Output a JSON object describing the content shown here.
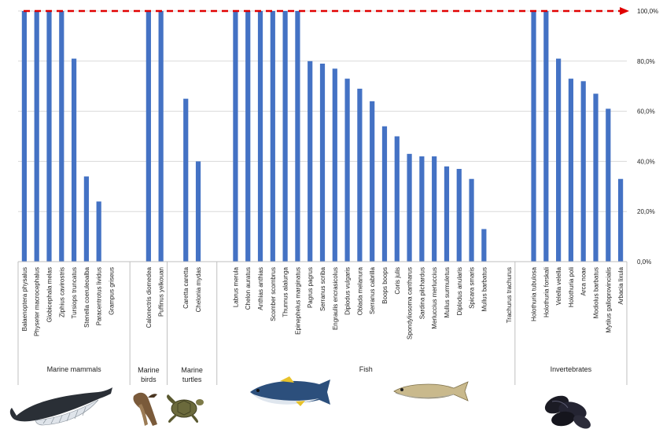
{
  "chart_data": {
    "type": "bar",
    "title": "",
    "xlabel": "",
    "ylabel": "",
    "ylim": [
      0,
      100
    ],
    "yticks": [
      "0,0%",
      "20,0%",
      "40,0%",
      "60,0%",
      "80,0%",
      "100,0%"
    ],
    "y_axis_position": "right",
    "grid": true,
    "bar_color": "#4472C4",
    "reference_line": {
      "value": 100,
      "color": "#E00000",
      "style": "dashed-arrow"
    },
    "categories": [
      "Balaenoptera physalus",
      "Physeter macrocephalus",
      "Globicephala melas",
      "Ziphius cavirostris",
      "Tursiops truncatus",
      "Stenella coeruleoalba",
      "Paracentrotus lividus",
      "Grampus griseus",
      "",
      "",
      "Calonectris diomedea",
      "Puffinus yelkouan",
      "",
      "Caretta caretta",
      "Chelonia mydas",
      "",
      "",
      "Labrus merula",
      "Chelon auratus",
      "Anthias anthias",
      "Scomber scombrus",
      "Thunnus alalunga",
      "Epinephelus marginatus",
      "Pagrus pagrus",
      "Serranus scriba",
      "Engraulis encrasicolus",
      "Diplodus vulgaris",
      "Oblada melanura",
      "Serranus cabrilla",
      "Boops boops",
      "Coris julis",
      "Spondyliosoma cantharus",
      "Sardina pilchardus",
      "Merluccius merluccius",
      "Mullus surmuletus",
      "Diplodus anularis",
      "Spicara smaris",
      "Mullus barbatus",
      "",
      "Trachurus trachurus",
      "",
      "Holothuria tubulosa",
      "Holothuria forskali",
      "Velella velella",
      "Holothuria poli",
      "Arca noae",
      "Modiolus barbatus",
      "Mytilus galloprovincialis",
      "Arbacia lixula"
    ],
    "values": [
      100,
      100,
      100,
      100,
      81,
      34,
      24,
      0,
      null,
      null,
      100,
      100,
      null,
      65,
      40,
      null,
      null,
      100,
      100,
      100,
      100,
      100,
      100,
      80,
      79,
      77,
      73,
      69,
      64,
      54,
      50,
      43,
      42,
      42,
      38,
      37,
      33,
      13,
      null,
      0,
      null,
      100,
      100,
      81,
      73,
      72,
      67,
      61,
      33
    ],
    "groups": [
      {
        "label": "Marine mammals",
        "start": 0,
        "end": 8
      },
      {
        "label": "Marine birds",
        "start": 9,
        "end": 11
      },
      {
        "label": "Marine turtles",
        "start": 12,
        "end": 15
      },
      {
        "label": "Fish",
        "start": 16,
        "end": 39
      },
      {
        "label": "Invertebrates",
        "start": 40,
        "end": 48
      }
    ],
    "illustrations": [
      "whale-icon",
      "seabird-icon",
      "sea-turtle-icon",
      "tuna-icon",
      "fish-icon",
      "mussels-icon"
    ]
  }
}
